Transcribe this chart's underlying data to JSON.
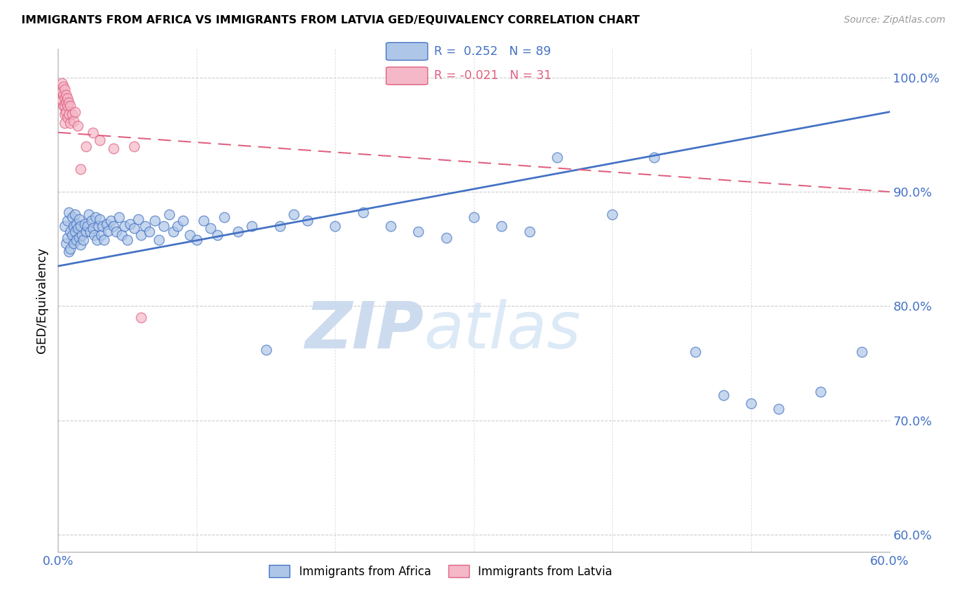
{
  "title": "IMMIGRANTS FROM AFRICA VS IMMIGRANTS FROM LATVIA GED/EQUIVALENCY CORRELATION CHART",
  "source": "Source: ZipAtlas.com",
  "ylabel": "GED/Equivalency",
  "x_min": 0.0,
  "x_max": 0.6,
  "y_min": 0.585,
  "y_max": 1.025,
  "x_ticks": [
    0.0,
    0.1,
    0.2,
    0.3,
    0.4,
    0.5,
    0.6
  ],
  "x_tick_labels": [
    "0.0%",
    "",
    "",
    "",
    "",
    "",
    "60.0%"
  ],
  "y_ticks": [
    0.6,
    0.7,
    0.8,
    0.9,
    1.0
  ],
  "y_tick_labels": [
    "60.0%",
    "70.0%",
    "80.0%",
    "90.0%",
    "100.0%"
  ],
  "africa_R": 0.252,
  "africa_N": 89,
  "latvia_R": -0.021,
  "latvia_N": 31,
  "africa_color": "#aec6e8",
  "latvia_color": "#f4b8c8",
  "africa_edge_color": "#4472C4",
  "latvia_edge_color": "#e06080",
  "africa_line_color": "#4472C4",
  "latvia_line_color": "#e06080",
  "africa_x": [
    0.005,
    0.006,
    0.007,
    0.007,
    0.008,
    0.008,
    0.009,
    0.009,
    0.01,
    0.01,
    0.011,
    0.011,
    0.012,
    0.012,
    0.013,
    0.013,
    0.014,
    0.015,
    0.015,
    0.016,
    0.016,
    0.017,
    0.018,
    0.019,
    0.02,
    0.021,
    0.022,
    0.023,
    0.024,
    0.025,
    0.026,
    0.027,
    0.028,
    0.029,
    0.03,
    0.031,
    0.032,
    0.033,
    0.035,
    0.036,
    0.038,
    0.04,
    0.042,
    0.044,
    0.046,
    0.048,
    0.05,
    0.052,
    0.055,
    0.058,
    0.06,
    0.063,
    0.066,
    0.07,
    0.073,
    0.076,
    0.08,
    0.083,
    0.086,
    0.09,
    0.095,
    0.1,
    0.105,
    0.11,
    0.115,
    0.12,
    0.13,
    0.14,
    0.15,
    0.16,
    0.17,
    0.18,
    0.2,
    0.22,
    0.24,
    0.26,
    0.28,
    0.3,
    0.32,
    0.34,
    0.36,
    0.4,
    0.43,
    0.46,
    0.48,
    0.5,
    0.52,
    0.55,
    0.58
  ],
  "africa_y": [
    0.87,
    0.855,
    0.875,
    0.86,
    0.882,
    0.848,
    0.865,
    0.85,
    0.878,
    0.862,
    0.87,
    0.855,
    0.88,
    0.865,
    0.872,
    0.858,
    0.868,
    0.876,
    0.86,
    0.87,
    0.854,
    0.862,
    0.858,
    0.872,
    0.865,
    0.87,
    0.88,
    0.865,
    0.875,
    0.868,
    0.862,
    0.878,
    0.858,
    0.87,
    0.876,
    0.862,
    0.87,
    0.858,
    0.872,
    0.866,
    0.875,
    0.87,
    0.865,
    0.878,
    0.862,
    0.87,
    0.858,
    0.872,
    0.868,
    0.876,
    0.862,
    0.87,
    0.865,
    0.875,
    0.858,
    0.87,
    0.88,
    0.865,
    0.87,
    0.875,
    0.862,
    0.858,
    0.875,
    0.868,
    0.862,
    0.878,
    0.865,
    0.87,
    0.762,
    0.87,
    0.88,
    0.875,
    0.87,
    0.882,
    0.87,
    0.865,
    0.86,
    0.878,
    0.87,
    0.865,
    0.93,
    0.88,
    0.93,
    0.76,
    0.722,
    0.715,
    0.71,
    0.725,
    0.76
  ],
  "latvia_x": [
    0.003,
    0.003,
    0.003,
    0.004,
    0.004,
    0.004,
    0.005,
    0.005,
    0.005,
    0.005,
    0.005,
    0.006,
    0.006,
    0.006,
    0.007,
    0.007,
    0.007,
    0.008,
    0.008,
    0.009,
    0.009,
    0.01,
    0.011,
    0.012,
    0.014,
    0.016,
    0.02,
    0.025,
    0.03,
    0.04,
    0.055
  ],
  "latvia_y": [
    0.995,
    0.988,
    0.98,
    0.992,
    0.985,
    0.975,
    0.99,
    0.982,
    0.975,
    0.968,
    0.96,
    0.985,
    0.978,
    0.97,
    0.982,
    0.975,
    0.965,
    0.978,
    0.968,
    0.975,
    0.96,
    0.968,
    0.962,
    0.97,
    0.958,
    0.92,
    0.94,
    0.952,
    0.945,
    0.938,
    0.94
  ],
  "latvia_outlier_x": [
    0.06
  ],
  "latvia_outlier_y": [
    0.79
  ],
  "watermark_zip": "ZIP",
  "watermark_atlas": "atlas",
  "legend_africa_label": "Immigrants from Africa",
  "legend_latvia_label": "Immigrants from Latvia",
  "africa_trendline_x0": 0.0,
  "africa_trendline_x1": 0.6,
  "africa_trendline_y0": 0.835,
  "africa_trendline_y1": 0.97,
  "latvia_trendline_x0": 0.0,
  "latvia_trendline_x1": 0.6,
  "latvia_trendline_y0": 0.952,
  "latvia_trendline_y1": 0.9
}
